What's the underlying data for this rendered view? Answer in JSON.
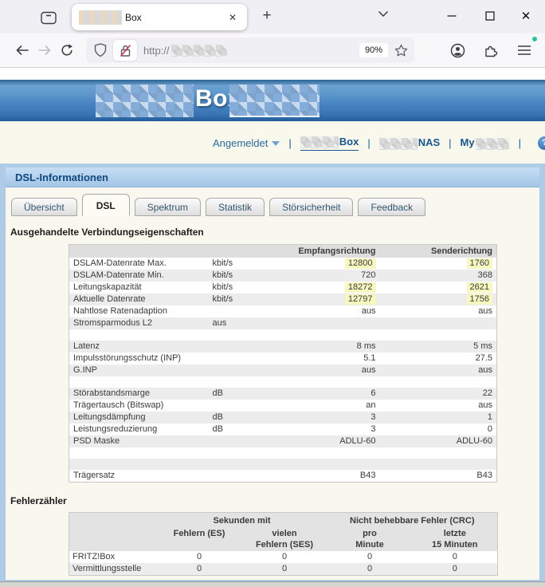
{
  "browser": {
    "tab": {
      "title": "Box",
      "close_glyph": "✕",
      "new_tab_glyph": "+"
    },
    "window": {
      "close_glyph": "✕"
    },
    "urlbar": {
      "protocol": "http://",
      "zoom_badge": "90%"
    }
  },
  "banner": {
    "product": "Box"
  },
  "nav": {
    "logged_in": "Angemeldet",
    "separator": "|",
    "items": [
      {
        "label": "Box",
        "active": true
      },
      {
        "label": "NAS",
        "active": false
      },
      {
        "label": "My",
        "active": false
      }
    ],
    "help_glyph": "?"
  },
  "panel": {
    "title": "DSL-Informationen",
    "tabs": [
      {
        "label": "Übersicht",
        "active": false
      },
      {
        "label": "DSL",
        "active": true
      },
      {
        "label": "Spektrum",
        "active": false
      },
      {
        "label": "Statistik",
        "active": false
      },
      {
        "label": "Störsicherheit",
        "active": false
      },
      {
        "label": "Feedback",
        "active": false
      }
    ]
  },
  "connection": {
    "heading": "Ausgehandelte Verbindungseigenschaften",
    "columns": [
      "",
      "",
      "Empfangsrichtung",
      "Senderichtung"
    ],
    "rows": [
      {
        "label": "DSLAM-Datenrate Max.",
        "unit": "kbit/s",
        "rx": "12800",
        "tx": "1760",
        "rx_hl": true,
        "tx_hl": true
      },
      {
        "label": "DSLAM-Datenrate Min.",
        "unit": "kbit/s",
        "rx": "720",
        "tx": "368"
      },
      {
        "label": "Leitungskapazität",
        "unit": "kbit/s",
        "rx": "18272",
        "tx": "2621",
        "rx_hl": true,
        "tx_hl": true
      },
      {
        "label": "Aktuelle Datenrate",
        "unit": "kbit/s",
        "rx": "12797",
        "tx": "1756",
        "rx_hl": true,
        "tx_hl": true
      },
      {
        "label": "Nahtlose Ratenadaption",
        "unit": "",
        "rx": "aus",
        "tx": "aus"
      },
      {
        "label": "Stromsparmodus L2",
        "unit": "aus",
        "rx": "",
        "tx": ""
      },
      {
        "spacer": true
      },
      {
        "label": "Latenz",
        "unit": "",
        "rx": "8 ms",
        "tx": "5 ms"
      },
      {
        "label": "Impulsstörungsschutz (INP)",
        "unit": "",
        "rx": "5.1",
        "tx": "27.5"
      },
      {
        "label": "G.INP",
        "unit": "",
        "rx": "aus",
        "tx": "aus"
      },
      {
        "spacer": true
      },
      {
        "label": "Störabstandsmarge",
        "unit": "dB",
        "rx": "6",
        "tx": "22"
      },
      {
        "label": "Trägertausch (Bitswap)",
        "unit": "",
        "rx": "an",
        "tx": "aus"
      },
      {
        "label": "Leitungsdämpfung",
        "unit": "dB",
        "rx": "3",
        "tx": "1"
      },
      {
        "label": "Leistungsreduzierung",
        "unit": "dB",
        "rx": "3",
        "tx": "0"
      },
      {
        "label": "PSD Maske",
        "unit": "",
        "rx": "ADLU-60",
        "tx": "ADLU-60"
      },
      {
        "spacer": true
      },
      {
        "spacer": true
      },
      {
        "label": "Trägersatz",
        "unit": "",
        "rx": "B43",
        "tx": "B43"
      }
    ]
  },
  "errors": {
    "heading": "Fehlerzähler",
    "group_headers": [
      "Sekunden mit",
      "Nicht behebbare Fehler (CRC)"
    ],
    "columns": [
      "Fehlern (ES)",
      "vielen\nFehlern (SES)",
      "pro\nMinute",
      "letzte\n15 Minuten"
    ],
    "rows": [
      {
        "label": "FRITZ!Box",
        "values": [
          "0",
          "0",
          "0",
          "0"
        ]
      },
      {
        "label": "Vermittlungsstelle",
        "values": [
          "0",
          "0",
          "0",
          "0"
        ]
      }
    ]
  },
  "colors": {
    "banner_blue": "#4884c2",
    "panel_header_blue": "#a3c6e6",
    "page_background": "#aecbe8",
    "content_cream": "#f9f8ee",
    "highlight_yellow": "#f7f7c0",
    "link_blue": "#17568f",
    "row_alt_gray": "#ececec",
    "update_dot_green": "#2ac3a2",
    "insecure_red": "#d7354f"
  }
}
